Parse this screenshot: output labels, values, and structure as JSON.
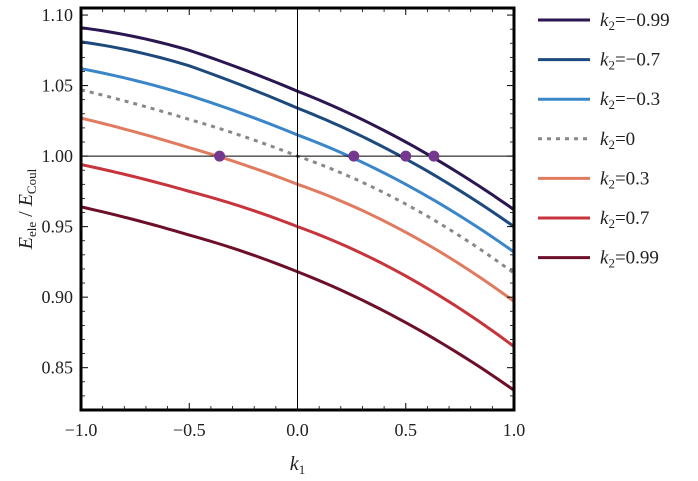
{
  "chart_data": {
    "type": "line",
    "title": "",
    "xlabel": {
      "main": "k",
      "sub": "1"
    },
    "ylabel": {
      "e1": "E",
      "e1_sub": "ele",
      "slash": " / ",
      "e2": "E",
      "e2_sub": "Coul"
    },
    "xlim": [
      -1.0,
      1.0
    ],
    "ylim": [
      0.82,
      1.105
    ],
    "x_ticks": [
      -1.0,
      -0.5,
      0.0,
      0.5,
      1.0
    ],
    "x_tick_labels": [
      "−1.0",
      "−0.5",
      "0.0",
      "0.5",
      "1.0"
    ],
    "y_ticks": [
      0.85,
      0.9,
      0.95,
      1.0,
      1.05,
      1.1
    ],
    "y_tick_labels": [
      "0.85",
      "0.90",
      "0.95",
      "1.00",
      "1.05",
      "1.10"
    ],
    "grid": false,
    "legend_position": "right",
    "reference_lines": {
      "x": 0.0,
      "y": 1.0
    },
    "x": [
      -1.0,
      -0.5,
      0.0,
      0.5,
      1.0
    ],
    "series": [
      {
        "name": "k2=−0.99",
        "label_main": "k",
        "label_sub": "2",
        "label_value": "=−0.99",
        "color": "#2a1650",
        "dash": false,
        "values": [
          1.091,
          1.075,
          1.046,
          1.01,
          0.962
        ]
      },
      {
        "name": "k2=−0.7",
        "label_main": "k",
        "label_sub": "2",
        "label_value": "=−0.7",
        "color": "#1d4a7c",
        "dash": false,
        "values": [
          1.081,
          1.064,
          1.034,
          0.998,
          0.95
        ]
      },
      {
        "name": "k2=−0.3",
        "label_main": "k",
        "label_sub": "2",
        "label_value": "=−0.3",
        "color": "#3a86c8",
        "dash": false,
        "values": [
          1.062,
          1.043,
          1.015,
          0.98,
          0.932
        ]
      },
      {
        "name": "k2=0",
        "label_main": "k",
        "label_sub": "2",
        "label_value": "=0",
        "color": "#888888",
        "dash": true,
        "values": [
          1.047,
          1.026,
          1.0,
          0.966,
          0.917
        ]
      },
      {
        "name": "k2=0.3",
        "label_main": "k",
        "label_sub": "2",
        "label_value": "=0.3",
        "color": "#e07b5f",
        "dash": false,
        "values": [
          1.027,
          1.006,
          0.98,
          0.946,
          0.897
        ]
      },
      {
        "name": "k2=0.7",
        "label_main": "k",
        "label_sub": "2",
        "label_value": "=0.7",
        "color": "#c7343c",
        "dash": false,
        "values": [
          0.994,
          0.975,
          0.95,
          0.915,
          0.865
        ]
      },
      {
        "name": "k2=0.99",
        "label_main": "k",
        "label_sub": "2",
        "label_value": "=0.99",
        "color": "#6e0f2a",
        "dash": false,
        "values": [
          0.964,
          0.944,
          0.918,
          0.882,
          0.834
        ]
      }
    ],
    "markers": {
      "color": "#74388f",
      "points": [
        {
          "x": -0.36,
          "y": 1.0
        },
        {
          "x": 0.26,
          "y": 1.0
        },
        {
          "x": 0.5,
          "y": 1.0
        },
        {
          "x": 0.63,
          "y": 1.0
        }
      ]
    }
  }
}
